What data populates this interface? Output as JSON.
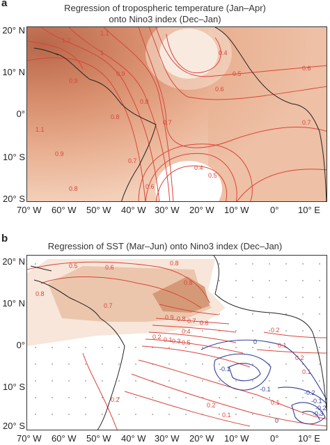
{
  "panel_a": {
    "letter": "a",
    "title_line1": "Regression of tropospheric temperature (Jan–Apr)",
    "title_line2": "onto Nino3 index (Dec–Jan)",
    "contour_labels": [
      "1.2",
      "1.1",
      "1.1",
      "1",
      "0.9",
      "0.9",
      "0.8",
      "0.8",
      "0.7",
      "0.7",
      "0.7",
      "0.6",
      "0.6",
      "0.5",
      "0.5",
      "0.4",
      "0.4",
      "0.6",
      "0.9",
      "0.8"
    ],
    "colors": {
      "high": "#b8674a",
      "mid": "#e2a383",
      "low": "#f6dccb",
      "line": "#d9443a"
    }
  },
  "panel_b": {
    "letter": "b",
    "title": "Regression of SST (Mar–Jun) onto Nino3 index (Dec–Jan)",
    "contour_labels": [
      "0.5",
      "0.6",
      "0.8",
      "0.8",
      "0.8",
      "0.7",
      "0.9",
      "0.8",
      "0.7",
      "0.6",
      "0.4",
      "0.2",
      "0.1",
      "0.3",
      "0.5",
      "0.2",
      "0.1",
      "0.2",
      "0.1",
      "0",
      "0",
      "-0.1",
      "-0.1",
      "-0.2",
      "-0.1",
      "0.2",
      "0.1",
      "0.2",
      "0.1",
      "-0.3",
      "-0.2"
    ],
    "colors": {
      "high": "#c88562",
      "mid": "#e9c1a6",
      "low": "#f7e6d9",
      "pos_line": "#d9443a",
      "neg_line": "#2f3c9c",
      "zero_line": "#3b3b6b"
    }
  },
  "lat_ticks": [
    "20° N",
    "10° N",
    "0°",
    "10° S",
    "20° S"
  ],
  "lon_ticks": [
    "70° W",
    "60° W",
    "50° W",
    "40° W",
    "30° W",
    "20° W",
    "10° W",
    "0°",
    "10° E"
  ]
}
